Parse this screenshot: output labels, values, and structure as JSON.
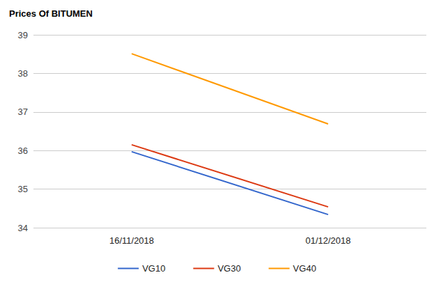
{
  "chart_data": {
    "type": "line",
    "title": "Prices Of BITUMEN",
    "categories": [
      "16/11/2018",
      "01/12/2018"
    ],
    "series": [
      {
        "name": "VG10",
        "color": "#3366cc",
        "values": [
          35.97,
          34.34
        ]
      },
      {
        "name": "VG30",
        "color": "#dc3912",
        "values": [
          36.15,
          34.54
        ]
      },
      {
        "name": "VG40",
        "color": "#ff9900",
        "values": [
          38.51,
          36.69
        ]
      }
    ],
    "ylim": [
      34,
      39
    ],
    "yticks": [
      34,
      35,
      36,
      37,
      38,
      39
    ],
    "grid": true,
    "legend": "bottom"
  }
}
